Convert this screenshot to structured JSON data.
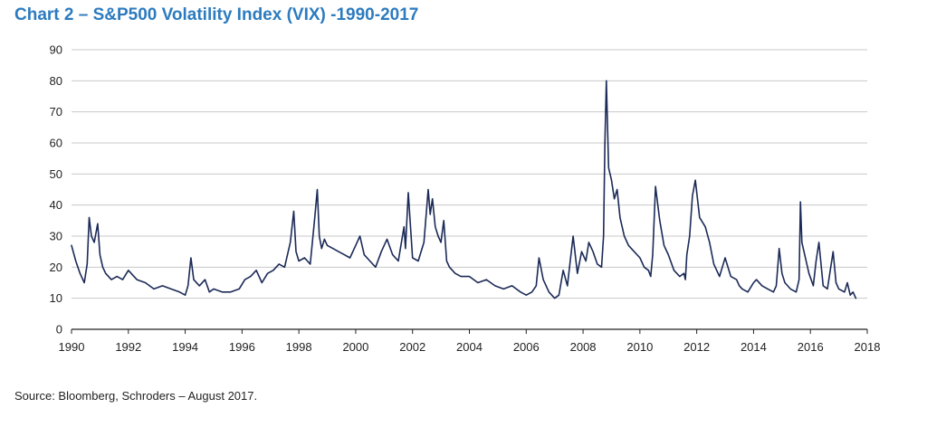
{
  "title": "Chart 2 – S&P500 Volatility Index (VIX) -1990-2017",
  "source": "Source: Bloomberg, Schroders – August 2017.",
  "colors": {
    "title": "#2c7bbf",
    "line": "#1b2a57",
    "grid": "#c8c8c8",
    "axis": "#222222"
  },
  "chart_data": {
    "type": "line",
    "title": "Chart 2 – S&P500 Volatility Index (VIX) -1990-2017",
    "xlabel": "",
    "ylabel": "",
    "xlim": [
      1990,
      2018
    ],
    "ylim": [
      0,
      90
    ],
    "grid": "horizontal",
    "x_ticks": [
      "1990",
      "1992",
      "1994",
      "1996",
      "1998",
      "2000",
      "2002",
      "2004",
      "2006",
      "2008",
      "2010",
      "2012",
      "2014",
      "2016",
      "2018"
    ],
    "y_ticks": [
      "0",
      "10",
      "20",
      "30",
      "40",
      "50",
      "60",
      "70",
      "80",
      "90"
    ],
    "series": [
      {
        "x": [
          1990.0,
          1990.15,
          1990.3,
          1990.45,
          1990.55,
          1990.62,
          1990.7,
          1990.8,
          1990.92,
          1991.0,
          1991.1,
          1991.2,
          1991.4,
          1991.6,
          1991.8,
          1992.0,
          1992.3,
          1992.6,
          1992.9,
          1993.2,
          1993.5,
          1993.8,
          1994.0,
          1994.1,
          1994.2,
          1994.3,
          1994.5,
          1994.7,
          1994.85,
          1995.0,
          1995.3,
          1995.6,
          1995.9,
          1996.1,
          1996.3,
          1996.5,
          1996.7,
          1996.9,
          1997.1,
          1997.3,
          1997.5,
          1997.7,
          1997.82,
          1997.9,
          1998.0,
          1998.2,
          1998.4,
          1998.55,
          1998.65,
          1998.72,
          1998.8,
          1998.9,
          1999.0,
          1999.2,
          1999.4,
          1999.6,
          1999.8,
          2000.0,
          2000.15,
          2000.3,
          2000.5,
          2000.7,
          2000.9,
          2001.1,
          2001.3,
          2001.5,
          2001.7,
          2001.75,
          2001.85,
          2002.0,
          2002.2,
          2002.4,
          2002.55,
          2002.62,
          2002.7,
          2002.8,
          2002.9,
          2003.0,
          2003.1,
          2003.2,
          2003.3,
          2003.5,
          2003.7,
          2004.0,
          2004.3,
          2004.6,
          2004.9,
          2005.2,
          2005.5,
          2005.8,
          2006.0,
          2006.2,
          2006.35,
          2006.45,
          2006.6,
          2006.8,
          2007.0,
          2007.15,
          2007.3,
          2007.45,
          2007.55,
          2007.65,
          2007.8,
          2007.95,
          2008.1,
          2008.2,
          2008.35,
          2008.5,
          2008.65,
          2008.72,
          2008.77,
          2008.82,
          2008.9,
          2009.0,
          2009.1,
          2009.2,
          2009.3,
          2009.45,
          2009.6,
          2009.8,
          2010.0,
          2010.15,
          2010.3,
          2010.38,
          2010.45,
          2010.55,
          2010.7,
          2010.85,
          2011.0,
          2011.2,
          2011.4,
          2011.55,
          2011.6,
          2011.65,
          2011.75,
          2011.85,
          2011.95,
          2012.1,
          2012.3,
          2012.45,
          2012.6,
          2012.8,
          2012.9,
          2013.0,
          2013.2,
          2013.4,
          2013.5,
          2013.6,
          2013.8,
          2014.0,
          2014.1,
          2014.3,
          2014.5,
          2014.7,
          2014.8,
          2014.9,
          2015.0,
          2015.1,
          2015.3,
          2015.5,
          2015.6,
          2015.65,
          2015.7,
          2015.8,
          2015.95,
          2016.1,
          2016.2,
          2016.3,
          2016.45,
          2016.6,
          2016.8,
          2016.9,
          2017.0,
          2017.2,
          2017.3,
          2017.4,
          2017.5,
          2017.6
        ],
        "y": [
          27,
          22,
          18,
          15,
          21,
          36,
          30,
          28,
          34,
          24,
          20,
          18,
          16,
          17,
          16,
          19,
          16,
          15,
          13,
          14,
          13,
          12,
          11,
          14,
          23,
          16,
          14,
          16,
          12,
          13,
          12,
          12,
          13,
          16,
          17,
          19,
          15,
          18,
          19,
          21,
          20,
          28,
          38,
          25,
          22,
          23,
          21,
          35,
          45,
          30,
          26,
          29,
          27,
          26,
          25,
          24,
          23,
          27,
          30,
          24,
          22,
          20,
          25,
          29,
          24,
          22,
          33,
          26,
          44,
          23,
          22,
          28,
          45,
          37,
          42,
          33,
          30,
          28,
          35,
          22,
          20,
          18,
          17,
          17,
          15,
          16,
          14,
          13,
          14,
          12,
          11,
          12,
          14,
          23,
          16,
          12,
          10,
          11,
          19,
          14,
          22,
          30,
          18,
          25,
          22,
          28,
          25,
          21,
          20,
          30,
          60,
          80,
          52,
          48,
          42,
          45,
          36,
          30,
          27,
          25,
          23,
          20,
          19,
          17,
          24,
          46,
          35,
          27,
          24,
          19,
          17,
          18,
          16,
          24,
          30,
          43,
          48,
          36,
          33,
          28,
          21,
          17,
          20,
          23,
          17,
          16,
          14,
          13,
          12,
          15,
          16,
          14,
          13,
          12,
          14,
          26,
          18,
          15,
          13,
          12,
          16,
          41,
          28,
          24,
          18,
          14,
          22,
          28,
          14,
          13,
          25,
          15,
          13,
          12,
          15,
          11,
          12,
          10
        ]
      }
    ]
  }
}
